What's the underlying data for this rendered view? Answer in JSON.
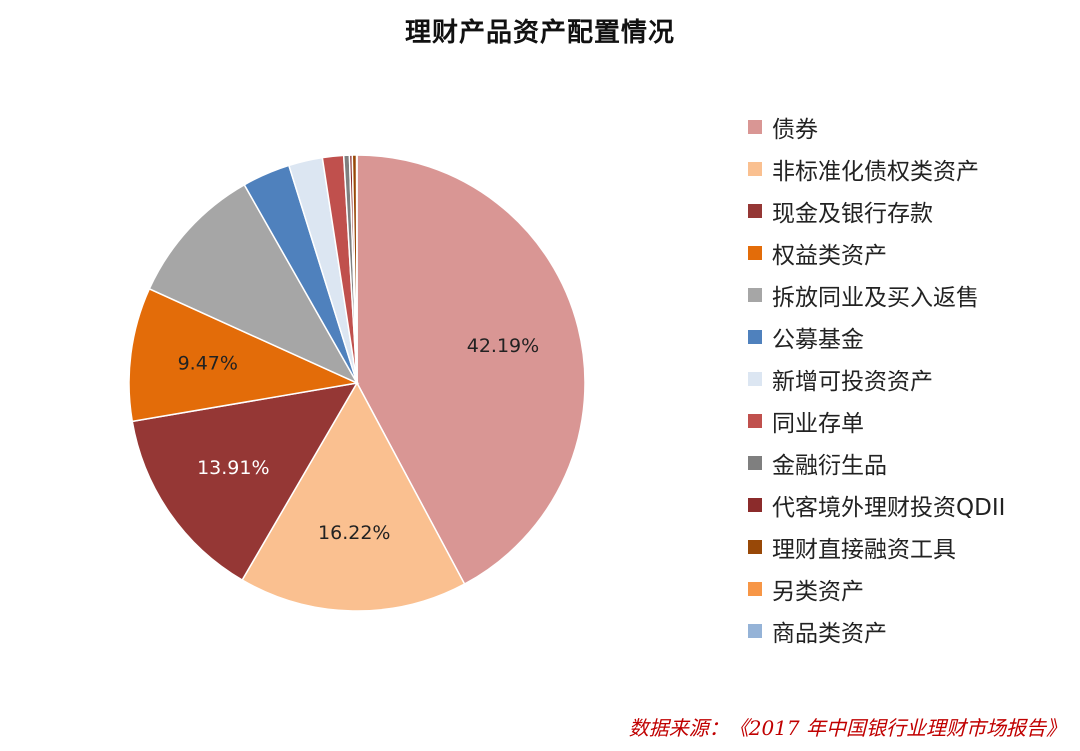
{
  "title": "理财产品资产配置情况",
  "source": "数据来源：《2017 年中国银行业理财市场报告》",
  "chart_data": {
    "type": "pie",
    "title": "理财产品资产配置情况",
    "start_angle_deg": 0,
    "direction": "clockwise",
    "slices": [
      {
        "label": "债券",
        "value": 42.19,
        "display": "42.19%",
        "color": "#d99694"
      },
      {
        "label": "非标准化债权类资产",
        "value": 16.22,
        "display": "16.22%",
        "color": "#fac090"
      },
      {
        "label": "现金及银行存款",
        "value": 13.91,
        "display": "13.91%",
        "color": "#953735"
      },
      {
        "label": "权益类资产",
        "value": 9.47,
        "display": "9.47%",
        "color": "#e36c09"
      },
      {
        "label": "拆放同业及买入返售",
        "value": 10.0,
        "display": "",
        "color": "#a6a6a6"
      },
      {
        "label": "公募基金",
        "value": 3.4,
        "display": "",
        "color": "#4f81bd"
      },
      {
        "label": "新增可投资资产",
        "value": 2.4,
        "display": "",
        "color": "#dce6f2"
      },
      {
        "label": "同业存单",
        "value": 1.5,
        "display": "",
        "color": "#c0504d"
      },
      {
        "label": "金融衍生品",
        "value": 0.4,
        "display": "",
        "color": "#7f7f7f"
      },
      {
        "label": "代客境外理财投资QDII",
        "value": 0.2,
        "display": "",
        "color": "#8b2b2b"
      },
      {
        "label": "理财直接融资工具",
        "value": 0.3,
        "display": "",
        "color": "#984807"
      },
      {
        "label": "另类资产",
        "value": 0.02,
        "display": "",
        "color": "#f79646"
      },
      {
        "label": "商品类资产",
        "value": 0.01,
        "display": "",
        "color": "#95b3d7"
      }
    ],
    "label_color_light": "#222222",
    "label_color_dark": "#ffffff",
    "legend_position": "right"
  }
}
